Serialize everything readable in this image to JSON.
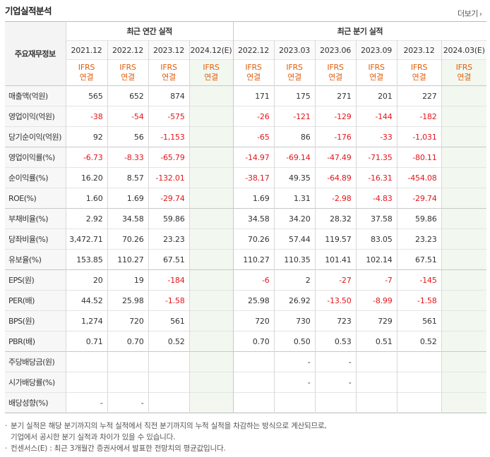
{
  "title": "기업실적분석",
  "more_label": "더보기",
  "header": {
    "row_label": "주요재무정보",
    "annual_group": "최근 연간 실적",
    "quarter_group": "최근 분기 실적",
    "periods": [
      "2021.12",
      "2022.12",
      "2023.12",
      "2024.12(E)",
      "2022.12",
      "2023.03",
      "2023.06",
      "2023.09",
      "2023.12",
      "2024.03(E)"
    ],
    "basis_line1": "IFRS",
    "basis_line2": "연결"
  },
  "rows": [
    {
      "label": "매출액(억원)",
      "values": [
        "565",
        "652",
        "874",
        "",
        "171",
        "175",
        "271",
        "201",
        "227",
        ""
      ]
    },
    {
      "label": "영업이익(억원)",
      "values": [
        "-38",
        "-54",
        "-575",
        "",
        "-26",
        "-121",
        "-129",
        "-144",
        "-182",
        ""
      ]
    },
    {
      "label": "당기순이익(억원)",
      "values": [
        "92",
        "56",
        "-1,153",
        "",
        "-65",
        "86",
        "-176",
        "-33",
        "-1,031",
        ""
      ]
    },
    {
      "label": "영업이익률(%)",
      "values": [
        "-6.73",
        "-8.33",
        "-65.79",
        "",
        "-14.97",
        "-69.14",
        "-47.49",
        "-71.35",
        "-80.11",
        ""
      ]
    },
    {
      "label": "순이익률(%)",
      "values": [
        "16.20",
        "8.57",
        "-132.01",
        "",
        "-38.17",
        "49.35",
        "-64.89",
        "-16.31",
        "-454.08",
        ""
      ]
    },
    {
      "label": "ROE(%)",
      "values": [
        "1.60",
        "1.69",
        "-29.74",
        "",
        "1.69",
        "1.31",
        "-2.98",
        "-4.83",
        "-29.74",
        ""
      ]
    },
    {
      "label": "부채비율(%)",
      "values": [
        "2.92",
        "34.58",
        "59.86",
        "",
        "34.58",
        "34.20",
        "28.32",
        "37.58",
        "59.86",
        ""
      ]
    },
    {
      "label": "당좌비율(%)",
      "values": [
        "3,472.71",
        "70.26",
        "23.23",
        "",
        "70.26",
        "57.44",
        "119.57",
        "83.05",
        "23.23",
        ""
      ]
    },
    {
      "label": "유보율(%)",
      "values": [
        "153.85",
        "110.27",
        "67.51",
        "",
        "110.27",
        "110.35",
        "101.41",
        "102.14",
        "67.51",
        ""
      ]
    },
    {
      "label": "EPS(원)",
      "values": [
        "20",
        "19",
        "-184",
        "",
        "-6",
        "2",
        "-27",
        "-7",
        "-145",
        ""
      ]
    },
    {
      "label": "PER(배)",
      "values": [
        "44.52",
        "25.98",
        "-1.58",
        "",
        "25.98",
        "26.92",
        "-13.50",
        "-8.99",
        "-1.58",
        ""
      ]
    },
    {
      "label": "BPS(원)",
      "values": [
        "1,274",
        "720",
        "561",
        "",
        "720",
        "730",
        "723",
        "729",
        "561",
        ""
      ]
    },
    {
      "label": "PBR(배)",
      "values": [
        "0.71",
        "0.70",
        "0.52",
        "",
        "0.70",
        "0.50",
        "0.53",
        "0.51",
        "0.52",
        ""
      ]
    },
    {
      "label": "주당배당금(원)",
      "values": [
        "",
        "",
        "",
        "",
        "",
        "-",
        "-",
        "",
        "",
        ""
      ]
    },
    {
      "label": "시가배당률(%)",
      "values": [
        "",
        "",
        "",
        "",
        "",
        "-",
        "-",
        "",
        "",
        ""
      ]
    },
    {
      "label": "배당성향(%)",
      "values": [
        "-",
        "-",
        "",
        "",
        "",
        "",
        "",
        "",
        "",
        ""
      ]
    }
  ],
  "notes": {
    "note1_line1": "분기 실적은 해당 분기까지의 누적 실적에서 직전 분기까지의 누적 실적을 차감하는 방식으로 계산되므로,",
    "note1_line2": "기업에서 공시한 분기 실적과 차이가 있을 수 있습니다.",
    "note2": "컨센서스(E) : 최근 3개월간 증권사에서 발표한 전망치의 평균값입니다."
  },
  "colors": {
    "negative": "#e3161b",
    "estimate_bg": "#f2f8f0",
    "basis": "#e06010"
  }
}
